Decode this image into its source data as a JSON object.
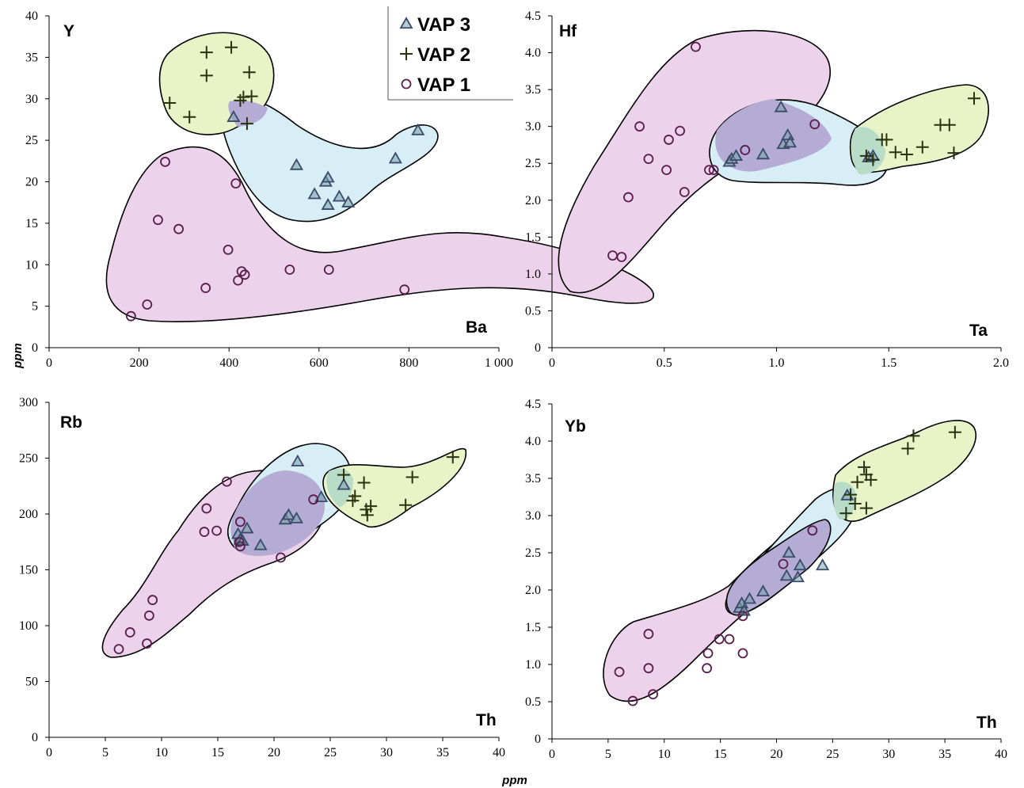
{
  "legend": [
    {
      "marker": "triangle",
      "label": "VAP 3",
      "color": "#3a4a6a"
    },
    {
      "marker": "plus",
      "label": "VAP 2",
      "color": "#2a3310"
    },
    {
      "marker": "circle",
      "label": "VAP 1",
      "color": "#5a1c4c"
    }
  ],
  "colors": {
    "vap1_fill": "#ecd2ea",
    "vap2_fill": "#e8f3c8",
    "vap3_fill": "#d8eef6",
    "overlap_fill": "#b4acd4",
    "outline": "#000000"
  },
  "chart_data": [
    {
      "type": "scatter",
      "panel_label": "Y",
      "axis_label": "Ba",
      "xlabel": "",
      "ylabel": "ppm",
      "xlim": [
        0,
        1000
      ],
      "ylim": [
        0,
        40
      ],
      "xticks": [
        "0",
        "200",
        "400",
        "600",
        "800",
        "1 000"
      ],
      "yticks": [
        "0",
        "5",
        "10",
        "15",
        "20",
        "25",
        "30",
        "35",
        "40"
      ],
      "series": [
        {
          "name": "VAP 3",
          "marker": "triangle",
          "points": [
            [
              410,
              27.8
            ],
            [
              550,
              22
            ],
            [
              590,
              18.5
            ],
            [
              615,
              20
            ],
            [
              620,
              20.5
            ],
            [
              620,
              17.2
            ],
            [
              645,
              18.2
            ],
            [
              665,
              17.5
            ],
            [
              770,
              22.8
            ],
            [
              820,
              26.2
            ]
          ]
        },
        {
          "name": "VAP 2",
          "marker": "plus",
          "points": [
            [
              268,
              29.5
            ],
            [
              312,
              27.8
            ],
            [
              350,
              35.6
            ],
            [
              350,
              32.8
            ],
            [
              405,
              36.2
            ],
            [
              425,
              29.8
            ],
            [
              432,
              30.2
            ],
            [
              440,
              27
            ],
            [
              445,
              33.2
            ],
            [
              450,
              30.3
            ]
          ]
        },
        {
          "name": "VAP 1",
          "marker": "circle",
          "points": [
            [
              182,
              3.8
            ],
            [
              218,
              5.2
            ],
            [
              242,
              15.4
            ],
            [
              258,
              22.4
            ],
            [
              288,
              14.3
            ],
            [
              348,
              7.2
            ],
            [
              398,
              11.8
            ],
            [
              415,
              19.8
            ],
            [
              420,
              8.1
            ],
            [
              428,
              9.2
            ],
            [
              435,
              8.8
            ],
            [
              535,
              9.4
            ],
            [
              622,
              9.4
            ],
            [
              790,
              7
            ]
          ]
        }
      ]
    },
    {
      "type": "scatter",
      "panel_label": "Hf",
      "axis_label": "Ta",
      "xlabel": "",
      "ylabel": "",
      "xlim": [
        0,
        2.0
      ],
      "ylim": [
        0,
        4.5
      ],
      "xticks": [
        "0",
        "0.5",
        "1.0",
        "1.5",
        "2.0"
      ],
      "yticks": [
        "0",
        "0.5",
        "1.0",
        "1.5",
        "2.0",
        "2.5",
        "3.0",
        "3.5",
        "4.0",
        "4.5"
      ],
      "series": [
        {
          "name": "VAP 3",
          "marker": "triangle",
          "points": [
            [
              0.79,
              2.52
            ],
            [
              0.8,
              2.56
            ],
            [
              0.82,
              2.6
            ],
            [
              0.94,
              2.62
            ],
            [
              1.02,
              3.26
            ],
            [
              1.03,
              2.76
            ],
            [
              1.05,
              2.88
            ],
            [
              1.06,
              2.78
            ],
            [
              1.41,
              2.58
            ],
            [
              1.43,
              2.6
            ]
          ]
        },
        {
          "name": "VAP 2",
          "marker": "plus",
          "points": [
            [
              1.4,
              2.6
            ],
            [
              1.43,
              2.55
            ],
            [
              1.47,
              2.82
            ],
            [
              1.49,
              2.82
            ],
            [
              1.53,
              2.65
            ],
            [
              1.58,
              2.62
            ],
            [
              1.65,
              2.72
            ],
            [
              1.73,
              3.02
            ],
            [
              1.77,
              3.02
            ],
            [
              1.79,
              2.64
            ],
            [
              1.88,
              3.38
            ]
          ]
        },
        {
          "name": "VAP 1",
          "marker": "circle",
          "points": [
            [
              0.27,
              1.25
            ],
            [
              0.31,
              1.23
            ],
            [
              0.34,
              2.04
            ],
            [
              0.39,
              3.0
            ],
            [
              0.43,
              2.56
            ],
            [
              0.51,
              2.41
            ],
            [
              0.52,
              2.82
            ],
            [
              0.57,
              2.94
            ],
            [
              0.59,
              2.11
            ],
            [
              0.64,
              4.08
            ],
            [
              0.7,
              2.41
            ],
            [
              0.72,
              2.41
            ],
            [
              0.86,
              2.68
            ],
            [
              1.17,
              3.03
            ]
          ]
        }
      ]
    },
    {
      "type": "scatter",
      "panel_label": "Rb",
      "axis_label": "Th",
      "xlabel": "ppm",
      "ylabel": "",
      "xlim": [
        0,
        40
      ],
      "ylim": [
        0,
        300
      ],
      "xticks": [
        "0",
        "5",
        "10",
        "15",
        "20",
        "25",
        "30",
        "35",
        "40"
      ],
      "yticks": [
        "0",
        "50",
        "100",
        "150",
        "200",
        "250",
        "300"
      ],
      "series": [
        {
          "name": "VAP 3",
          "marker": "triangle",
          "points": [
            [
              16.8,
              182
            ],
            [
              17.0,
              177
            ],
            [
              17.2,
              176
            ],
            [
              17.6,
              187
            ],
            [
              18.8,
              172
            ],
            [
              21.0,
              195
            ],
            [
              21.3,
              199
            ],
            [
              22.0,
              196
            ],
            [
              22.1,
              247
            ],
            [
              24.2,
              215
            ],
            [
              26.2,
              226
            ]
          ]
        },
        {
          "name": "VAP 2",
          "marker": "plus",
          "points": [
            [
              26.2,
              235
            ],
            [
              27.0,
              212
            ],
            [
              27.2,
              216
            ],
            [
              28.0,
              228
            ],
            [
              28.2,
              204
            ],
            [
              28.3,
              199
            ],
            [
              28.6,
              207
            ],
            [
              31.7,
              208
            ],
            [
              32.3,
              233
            ],
            [
              35.9,
              251
            ]
          ]
        },
        {
          "name": "VAP 1",
          "marker": "circle",
          "points": [
            [
              6.2,
              79
            ],
            [
              7.2,
              94
            ],
            [
              8.7,
              84
            ],
            [
              8.9,
              109
            ],
            [
              9.2,
              123
            ],
            [
              13.8,
              184
            ],
            [
              14.0,
              205
            ],
            [
              14.9,
              185
            ],
            [
              15.8,
              229
            ],
            [
              16.9,
              175
            ],
            [
              17.0,
              171
            ],
            [
              17.0,
              193
            ],
            [
              20.6,
              161
            ],
            [
              23.5,
              213
            ]
          ]
        }
      ]
    },
    {
      "type": "scatter",
      "panel_label": "Yb",
      "axis_label": "Th",
      "xlabel": "",
      "ylabel": "",
      "xlim": [
        0,
        40
      ],
      "ylim": [
        0,
        4.5
      ],
      "xticks": [
        "0",
        "5",
        "10",
        "15",
        "20",
        "25",
        "30",
        "35",
        "40"
      ],
      "yticks": [
        "0",
        "0.5",
        "1.0",
        "1.5",
        "2.0",
        "2.5",
        "3.0",
        "3.5",
        "4.0",
        "4.5"
      ],
      "series": [
        {
          "name": "VAP 3",
          "marker": "triangle",
          "points": [
            [
              16.7,
              1.76
            ],
            [
              16.9,
              1.82
            ],
            [
              17.1,
              1.72
            ],
            [
              17.6,
              1.88
            ],
            [
              18.8,
              1.98
            ],
            [
              20.9,
              2.19
            ],
            [
              21.1,
              2.5
            ],
            [
              21.9,
              2.17
            ],
            [
              22.1,
              2.33
            ],
            [
              24.1,
              2.33
            ],
            [
              26.3,
              3.27
            ]
          ]
        },
        {
          "name": "VAP 2",
          "marker": "plus",
          "points": [
            [
              26.2,
              3.03
            ],
            [
              26.6,
              3.28
            ],
            [
              27.0,
              3.16
            ],
            [
              27.2,
              3.45
            ],
            [
              27.8,
              3.65
            ],
            [
              28.0,
              3.55
            ],
            [
              28.0,
              3.1
            ],
            [
              28.4,
              3.48
            ],
            [
              31.7,
              3.9
            ],
            [
              32.2,
              4.07
            ],
            [
              35.9,
              4.12
            ]
          ]
        },
        {
          "name": "VAP 1",
          "marker": "circle",
          "points": [
            [
              6.0,
              0.9
            ],
            [
              7.2,
              0.51
            ],
            [
              8.6,
              1.41
            ],
            [
              8.6,
              0.95
            ],
            [
              9.0,
              0.6
            ],
            [
              13.8,
              0.95
            ],
            [
              13.9,
              1.15
            ],
            [
              14.9,
              1.34
            ],
            [
              15.8,
              1.34
            ],
            [
              17.0,
              1.15
            ],
            [
              17.0,
              1.65
            ],
            [
              20.6,
              2.35
            ],
            [
              23.2,
              2.8
            ]
          ]
        }
      ]
    }
  ]
}
